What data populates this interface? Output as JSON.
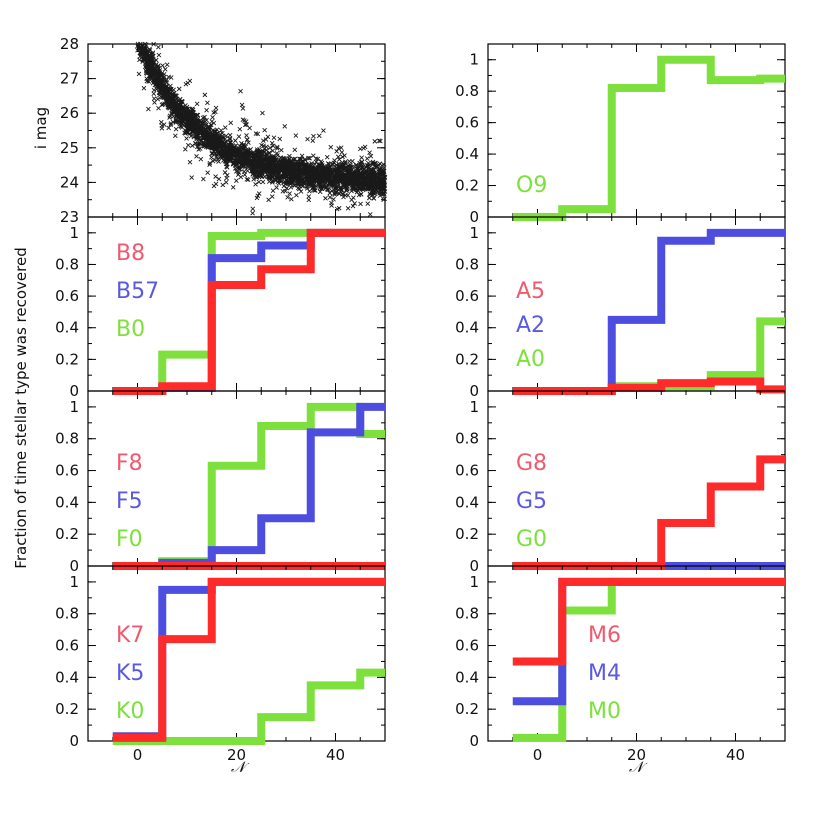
{
  "chart_data": {
    "type": "multi-panel step chart",
    "shared_ylabel": "Fraction of time stellar type was recovered",
    "xlabel": "𝒩",
    "xlim": [
      -10,
      50
    ],
    "x_ticks": [
      0,
      20,
      40
    ],
    "colors": {
      "red": "#ff2a2a",
      "blue": "#4d4ddf",
      "green": "#7de03c"
    },
    "scatter_panel": {
      "type": "scatter",
      "ylabel": "i mag",
      "ylim": [
        23,
        28
      ],
      "y_ticks": [
        23,
        24,
        25,
        26,
        27,
        28
      ],
      "marker": "×",
      "description_series": "dense band of points from (0,28) falling to (50,24)"
    },
    "panels": [
      {
        "id": "O",
        "ylim": [
          0,
          1.1
        ],
        "y_ticks": [
          0,
          0.2,
          0.4,
          0.6,
          0.8,
          1
        ],
        "series": [
          {
            "name": "O9",
            "color": "green",
            "x": [
              -5,
              5,
              15,
              25,
              35,
              45,
              50
            ],
            "y": [
              0,
              0.05,
              0.82,
              1.0,
              0.87,
              0.88
            ]
          }
        ]
      },
      {
        "id": "B",
        "ylim": [
          0,
          1.1
        ],
        "y_ticks": [
          0,
          0.2,
          0.4,
          0.6,
          0.8,
          1
        ],
        "series": [
          {
            "name": "B8",
            "color": "red",
            "x": [
              -5,
              5,
              15,
              25,
              35,
              50
            ],
            "y": [
              0,
              0.03,
              0.67,
              0.77,
              1.0
            ]
          },
          {
            "name": "B57",
            "color": "blue",
            "x": [
              -5,
              5,
              15,
              25,
              35,
              50
            ],
            "y": [
              0,
              0.02,
              0.84,
              0.92,
              1.0
            ]
          },
          {
            "name": "B0",
            "color": "green",
            "x": [
              -5,
              5,
              15,
              25,
              35,
              50
            ],
            "y": [
              0,
              0.23,
              0.98,
              1.0,
              1.0
            ]
          }
        ]
      },
      {
        "id": "A",
        "ylim": [
          0,
          1.1
        ],
        "y_ticks": [
          0,
          0.2,
          0.4,
          0.6,
          0.8,
          1
        ],
        "series": [
          {
            "name": "A5",
            "color": "red",
            "x": [
              -5,
              5,
              15,
              25,
              35,
              45,
              50
            ],
            "y": [
              0,
              0,
              0.02,
              0.05,
              0.06,
              0.01
            ]
          },
          {
            "name": "A2",
            "color": "blue",
            "x": [
              -5,
              5,
              15,
              25,
              35,
              50
            ],
            "y": [
              0,
              0,
              0.45,
              0.95,
              1.0
            ]
          },
          {
            "name": "A0",
            "color": "green",
            "x": [
              -5,
              5,
              15,
              25,
              35,
              45,
              50
            ],
            "y": [
              0,
              0,
              0.03,
              0.03,
              0.1,
              0.44
            ]
          }
        ]
      },
      {
        "id": "F",
        "ylim": [
          0,
          1.1
        ],
        "y_ticks": [
          0,
          0.2,
          0.4,
          0.6,
          0.8,
          1
        ],
        "series": [
          {
            "name": "F8",
            "color": "red",
            "x": [
              -5,
              50
            ],
            "y": [
              0
            ]
          },
          {
            "name": "F5",
            "color": "blue",
            "x": [
              -5,
              5,
              15,
              25,
              35,
              45,
              50
            ],
            "y": [
              0,
              0.02,
              0.1,
              0.3,
              0.84,
              1.0
            ]
          },
          {
            "name": "F0",
            "color": "green",
            "x": [
              -5,
              5,
              15,
              25,
              35,
              45,
              50
            ],
            "y": [
              0,
              0.03,
              0.63,
              0.88,
              1.0,
              0.83
            ]
          }
        ]
      },
      {
        "id": "G",
        "ylim": [
          0,
          1.1
        ],
        "y_ticks": [
          0,
          0.2,
          0.4,
          0.6,
          0.8,
          1
        ],
        "series": [
          {
            "name": "G8",
            "color": "red",
            "x": [
              -5,
              25,
              35,
              45,
              50
            ],
            "y": [
              0,
              0.27,
              0.5,
              0.67
            ]
          },
          {
            "name": "G5",
            "color": "blue",
            "x": [
              25,
              50
            ],
            "y": [
              0
            ]
          },
          {
            "name": "G0",
            "color": "green",
            "x": [
              -5,
              50
            ],
            "y": [
              0
            ]
          }
        ]
      },
      {
        "id": "K",
        "ylim": [
          0,
          1.1
        ],
        "y_ticks": [
          0,
          0.2,
          0.4,
          0.6,
          0.8,
          1
        ],
        "series": [
          {
            "name": "K7",
            "color": "red",
            "x": [
              -5,
              5,
              15,
              50
            ],
            "y": [
              0.02,
              0.64,
              1.0
            ]
          },
          {
            "name": "K5",
            "color": "blue",
            "x": [
              -5,
              5,
              15,
              50
            ],
            "y": [
              0.03,
              0.95,
              1.0
            ]
          },
          {
            "name": "K0",
            "color": "green",
            "x": [
              -5,
              25,
              35,
              45,
              50
            ],
            "y": [
              0,
              0.15,
              0.35,
              0.43
            ]
          }
        ]
      },
      {
        "id": "M",
        "ylim": [
          0,
          1.1
        ],
        "y_ticks": [
          0,
          0.2,
          0.4,
          0.6,
          0.8,
          1
        ],
        "series": [
          {
            "name": "M6",
            "color": "red",
            "x": [
              -5,
              5,
              50
            ],
            "y": [
              0.5,
              1.0
            ]
          },
          {
            "name": "M4",
            "color": "blue",
            "x": [
              -5,
              5,
              50
            ],
            "y": [
              0.25,
              1.0
            ]
          },
          {
            "name": "M0",
            "color": "green",
            "x": [
              -5,
              5,
              15,
              50
            ],
            "y": [
              0.02,
              0.82,
              1.0
            ]
          }
        ]
      }
    ]
  }
}
